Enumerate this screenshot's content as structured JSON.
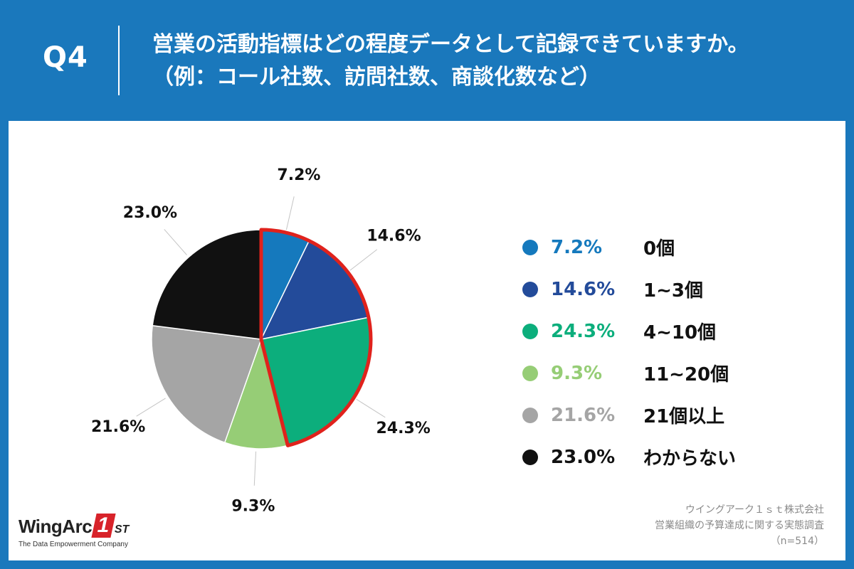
{
  "header": {
    "q_label": "Q4",
    "title_line1": "営業の活動指標はどの程度データとして記録できていますか。",
    "title_line2": "（例：コール社数、訪問社数、商談化数など）"
  },
  "chart_data": {
    "type": "pie",
    "title": "営業の活動指標はどの程度データとして記録できていますか。（例：コール社数、訪問社数、商談化数など）",
    "categories": [
      "0個",
      "1~3個",
      "4~10個",
      "11~20個",
      "21個以上",
      "わからない"
    ],
    "values": [
      7.2,
      14.6,
      24.3,
      9.3,
      21.6,
      23.0
    ],
    "labels": [
      "7.2%",
      "14.6%",
      "24.3%",
      "9.3%",
      "21.6%",
      "23.0%"
    ],
    "colors": [
      "#1579bd",
      "#234b9a",
      "#0cae7c",
      "#96cd76",
      "#a5a5a5",
      "#111111"
    ],
    "highlight": {
      "categories": [
        "0個",
        "1~3個",
        "4~10個"
      ],
      "color": "#e0221c"
    },
    "legend_position": "right",
    "start_angle": "top, clockwise"
  },
  "legend": [
    {
      "pct": "7.2%",
      "label": "0個",
      "color": "#1579bd"
    },
    {
      "pct": "14.6%",
      "label": "1~3個",
      "color": "#234b9a"
    },
    {
      "pct": "24.3%",
      "label": "4~10個",
      "color": "#0cae7c"
    },
    {
      "pct": "9.3%",
      "label": "11~20個",
      "color": "#96cd76"
    },
    {
      "pct": "21.6%",
      "label": "21個以上",
      "color": "#a5a5a5"
    },
    {
      "pct": "23.0%",
      "label": "わからない",
      "color": "#111111"
    }
  ],
  "footer": {
    "company": "ウイングアーク１ｓｔ株式会社",
    "survey": "営業組織の予算達成に関する実態調査",
    "sample": "（n=514）"
  },
  "logo": {
    "word": "WingArc",
    "one": "1",
    "st": "ST",
    "tagline": "The Data Empowerment Company"
  },
  "colors": {
    "header_bg": "#1a78bc",
    "card_bg": "#ffffff"
  }
}
